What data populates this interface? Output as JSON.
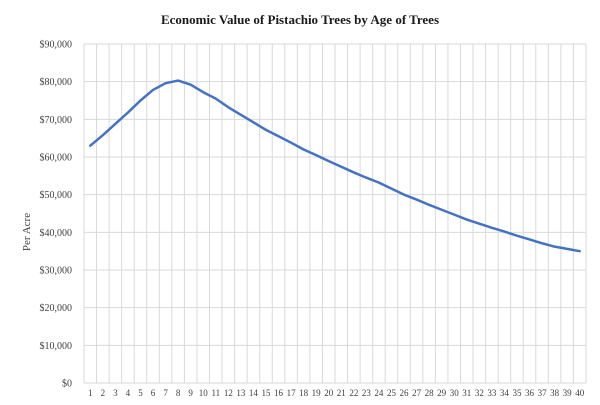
{
  "chart_data": {
    "type": "line",
    "title": "Economic  Value  of Pistachio  Trees by Age of Trees",
    "xlabel": "",
    "ylabel": "Per Acre",
    "x": [
      1,
      2,
      3,
      4,
      5,
      6,
      7,
      8,
      9,
      10,
      11,
      12,
      13,
      14,
      15,
      16,
      17,
      18,
      19,
      20,
      21,
      22,
      23,
      24,
      25,
      26,
      27,
      28,
      29,
      30,
      31,
      32,
      33,
      34,
      35,
      36,
      37,
      38,
      39,
      40
    ],
    "y_tick_labels": [
      "$0",
      "$10,000",
      "$20,000",
      "$30,000",
      "$40,000",
      "$50,000",
      "$60,000",
      "$70,000",
      "$80,000",
      "$90,000"
    ],
    "ylim": [
      0,
      90000
    ],
    "grid": true,
    "series": [
      {
        "color": "#4472c4",
        "values": [
          63000,
          65800,
          68800,
          71800,
          75000,
          77800,
          79600,
          80300,
          79200,
          77200,
          75500,
          73200,
          71200,
          69200,
          67200,
          65500,
          63800,
          62000,
          60500,
          58900,
          57400,
          55900,
          54500,
          53200,
          51600,
          50000,
          48700,
          47300,
          46000,
          44700,
          43400,
          42300,
          41200,
          40200,
          39100,
          38100,
          37100,
          36200,
          35600,
          35000
        ]
      }
    ]
  }
}
